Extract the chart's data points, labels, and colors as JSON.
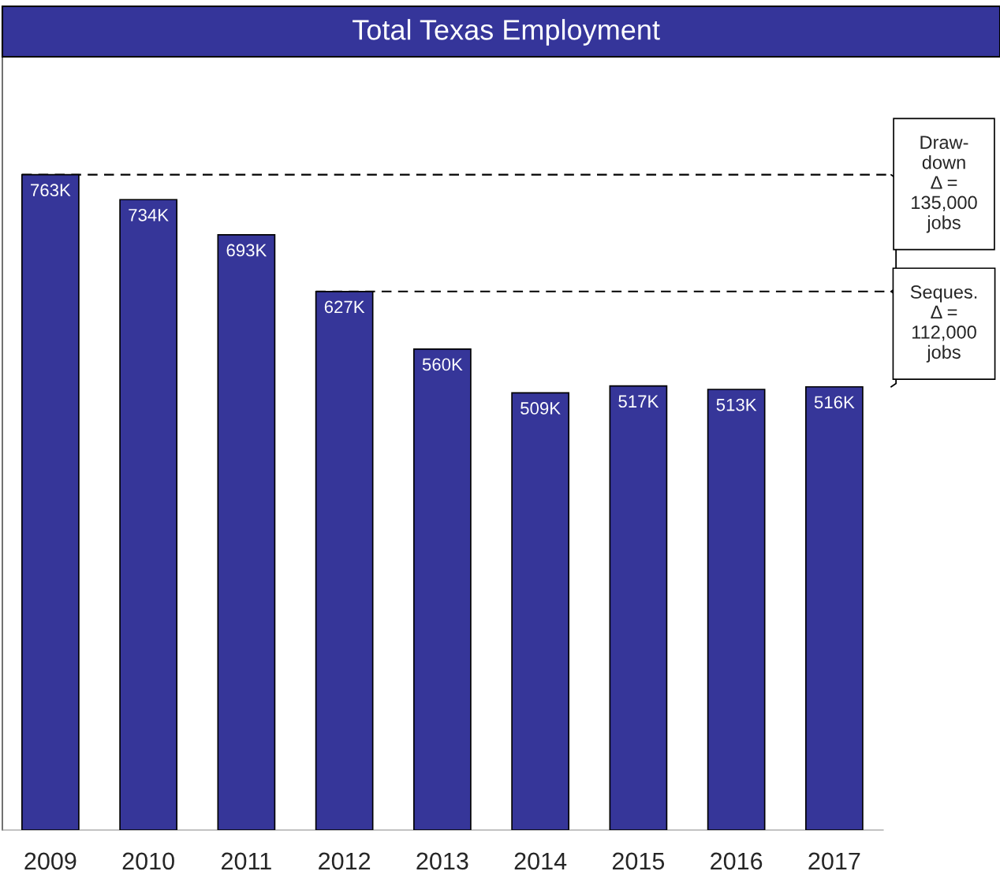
{
  "chart_data": {
    "type": "bar",
    "title": "Total Texas Employment",
    "categories": [
      "2009",
      "2010",
      "2011",
      "2012",
      "2013",
      "2014",
      "2015",
      "2016",
      "2017"
    ],
    "values": [
      763,
      734,
      693,
      627,
      560,
      509,
      517,
      513,
      516
    ],
    "value_labels": [
      "763K",
      "734K",
      "693K",
      "627K",
      "560K",
      "509K",
      "517K",
      "513K",
      "516K"
    ],
    "color": "#363699",
    "ref_lines": [
      {
        "axis": "y",
        "value": 763,
        "color": "#000000",
        "line_style": "dashed"
      },
      {
        "axis": "y",
        "value": 627,
        "color": "#000000",
        "line_style": "dashed"
      }
    ],
    "annotations": [
      "Draw-\ndown\nΔ =\n135,000\njobs",
      "Seques.\nΔ =\n112,000\njobs"
    ],
    "grid": false,
    "legend": false
  }
}
